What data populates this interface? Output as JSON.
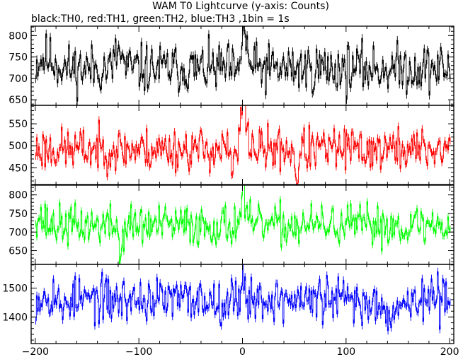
{
  "chart_data": {
    "type": "line",
    "title": "WAM T0 Lightcurve (y-axis: Counts)",
    "subtitle": "black:TH0, red:TH1, green:TH2, blue:TH3 ,1bin = 1s",
    "xlabel": "",
    "ylabel": "",
    "xlim": [
      -204,
      204
    ],
    "x_ticks": [
      -200,
      -100,
      0,
      100,
      200
    ],
    "x_tick_labels": [
      "−200",
      "−100",
      "0",
      "100",
      "200"
    ],
    "grid": false,
    "panels": [
      {
        "name": "TH0",
        "color": "#000000",
        "ylim": [
          637,
          822
        ],
        "y_ticks": [
          650,
          700,
          750,
          800
        ],
        "y_tick_labels": [
          "650",
          "700",
          "750",
          "800"
        ],
        "base_level": 723,
        "noise": 28,
        "seed": 11,
        "features": [
          {
            "x": -190,
            "width": 8,
            "amp": 25
          },
          {
            "x": -120,
            "width": 3,
            "amp": 40
          },
          {
            "x": -5,
            "width": 3,
            "amp": -25
          },
          {
            "x": 0,
            "width": 2,
            "amp": 80
          },
          {
            "x": 3,
            "width": 3,
            "amp": 30
          }
        ]
      },
      {
        "name": "TH1",
        "color": "#ff0000",
        "ylim": [
          412,
          592
        ],
        "y_ticks": [
          450,
          500,
          550
        ],
        "y_tick_labels": [
          "450",
          "500",
          "550"
        ],
        "base_level": 492,
        "noise": 24,
        "seed": 23,
        "features": [
          {
            "x": 0,
            "width": 2,
            "amp": 90
          },
          {
            "x": 3,
            "width": 3,
            "amp": 40
          },
          {
            "x": 52,
            "width": 1.5,
            "amp": -70
          },
          {
            "x": -10,
            "width": 2,
            "amp": -50
          }
        ]
      },
      {
        "name": "TH2",
        "color": "#00ff00",
        "ylim": [
          613,
          826
        ],
        "y_ticks": [
          650,
          700,
          750,
          800
        ],
        "y_tick_labels": [
          "650",
          "700",
          "750",
          "800"
        ],
        "base_level": 718,
        "noise": 27,
        "seed": 37,
        "features": [
          {
            "x": -200,
            "width": 6,
            "amp": 30
          },
          {
            "x": -118,
            "width": 1.5,
            "amp": -90
          },
          {
            "x": 0,
            "width": 2,
            "amp": 95
          }
        ]
      },
      {
        "name": "TH3",
        "color": "#0000ff",
        "ylim": [
          1308,
          1582
        ],
        "y_ticks": [
          1400,
          1500
        ],
        "y_tick_labels": [
          "1400",
          "1500"
        ],
        "base_level": 1460,
        "noise": 38,
        "seed": 53,
        "features": [
          {
            "x": -185,
            "width": 10,
            "amp": 20
          },
          {
            "x": -175,
            "width": 1.5,
            "amp": -90
          },
          {
            "x": 0,
            "width": 2,
            "amp": 90
          },
          {
            "x": 120,
            "width": 5,
            "amp": -25
          },
          {
            "x": 142,
            "width": 1.5,
            "amp": -100
          },
          {
            "x": 155,
            "width": 5,
            "amp": -20
          }
        ]
      }
    ]
  }
}
